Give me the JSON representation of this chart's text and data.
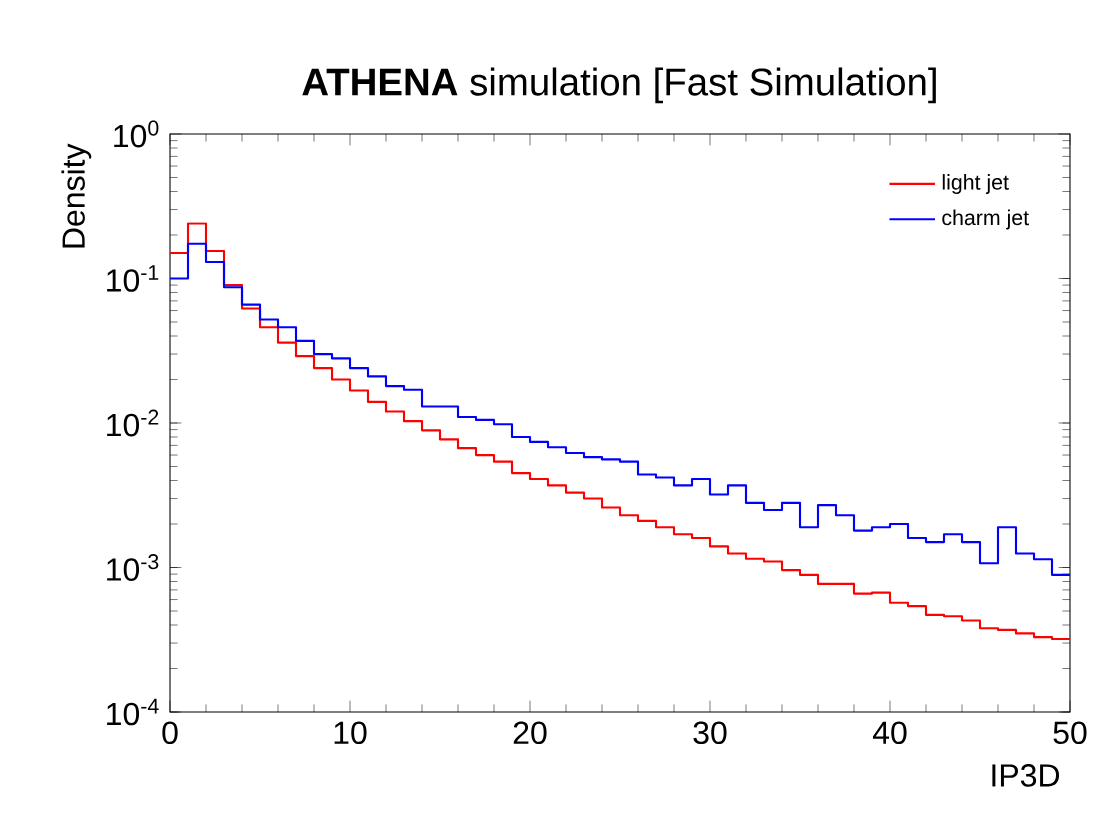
{
  "chart_data": {
    "type": "histogram",
    "title": "**ATHENA** simulation [Fast Simulation]",
    "xlabel": "IP3D",
    "ylabel": "Density",
    "bins": [
      0,
      1,
      2,
      3,
      4,
      5,
      6,
      7,
      8,
      9,
      10,
      11,
      12,
      13,
      14,
      15,
      16,
      17,
      18,
      19,
      20,
      21,
      22,
      23,
      24,
      25,
      26,
      27,
      28,
      29,
      30,
      31,
      32,
      33,
      34,
      35,
      36,
      37,
      38,
      39,
      40,
      41,
      42,
      43,
      44,
      45,
      46,
      47,
      48,
      49,
      50
    ],
    "series": [
      {
        "name": "light jet",
        "color": "#ff0000",
        "values": [
          0.15,
          0.24,
          0.155,
          0.09,
          0.062,
          0.046,
          0.036,
          0.029,
          0.024,
          0.02,
          0.0168,
          0.014,
          0.012,
          0.0103,
          0.0089,
          0.0077,
          0.0067,
          0.006,
          0.0054,
          0.0045,
          0.0041,
          0.0037,
          0.0033,
          0.003,
          0.0026,
          0.0023,
          0.0021,
          0.0019,
          0.0017,
          0.0016,
          0.0014,
          0.00125,
          0.00115,
          0.0011,
          0.00096,
          0.00089,
          0.00077,
          0.00077,
          0.00066,
          0.00067,
          0.00057,
          0.00054,
          0.00047,
          0.00046,
          0.00043,
          0.00038,
          0.00037,
          0.00035,
          0.00033,
          0.00032
        ]
      },
      {
        "name": "charm jet",
        "color": "#0000ff",
        "values": [
          0.1,
          0.174,
          0.13,
          0.087,
          0.066,
          0.052,
          0.046,
          0.037,
          0.03,
          0.028,
          0.024,
          0.021,
          0.018,
          0.017,
          0.013,
          0.013,
          0.011,
          0.0105,
          0.0098,
          0.008,
          0.0074,
          0.0068,
          0.0062,
          0.0058,
          0.0056,
          0.0054,
          0.0044,
          0.0042,
          0.0037,
          0.0041,
          0.0032,
          0.0037,
          0.0028,
          0.0025,
          0.0028,
          0.0019,
          0.0027,
          0.0023,
          0.0018,
          0.0019,
          0.002,
          0.0016,
          0.0015,
          0.0017,
          0.0015,
          0.00107,
          0.0019,
          0.00125,
          0.00114,
          0.00089
        ]
      }
    ],
    "xlim": [
      0,
      50
    ],
    "xticks": [
      0,
      10,
      20,
      30,
      40,
      50
    ],
    "ylim": [
      0.0001,
      1
    ],
    "yticks": [
      {
        "value": 0.0001,
        "label": "10$^{-4}$"
      },
      {
        "value": 0.001,
        "label": "10$^{-3}$"
      },
      {
        "value": 0.01,
        "label": "10$^{-2}$"
      },
      {
        "value": 0.1,
        "label": "10$^{-1}$"
      },
      {
        "value": 1,
        "label": "10$^{0}$"
      }
    ],
    "log": "y",
    "grid": false,
    "legend": "top right"
  }
}
